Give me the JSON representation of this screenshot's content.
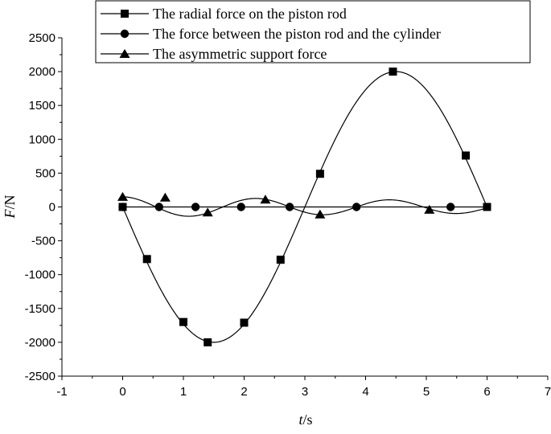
{
  "chart_data": {
    "type": "line",
    "xlabel_var": "t",
    "xlabel_unit": "/s",
    "ylabel_var": "F",
    "ylabel_unit": "/N",
    "xlim": [
      -1,
      7
    ],
    "ylim": [
      -2500,
      2500
    ],
    "xticks": [
      "-1",
      "0",
      "1",
      "2",
      "3",
      "4",
      "5",
      "6",
      "7"
    ],
    "yticks": [
      "-2500",
      "-2000",
      "-1500",
      "-1000",
      "-500",
      "0",
      "500",
      "1000",
      "1500",
      "2000",
      "2500"
    ],
    "grid": false,
    "legend_position": "top",
    "series": [
      {
        "name": "The radial force on the piston rod",
        "marker": "square",
        "curve": "radial",
        "x": [
          0,
          0.4,
          1.0,
          1.4,
          2.0,
          2.6,
          3.25,
          4.45,
          5.65,
          6.0
        ],
        "values": [
          0,
          -770,
          -1700,
          -2000,
          -1710,
          -780,
          490,
          2000,
          760,
          0
        ]
      },
      {
        "name": "The force between the piston rod and the cylinder",
        "marker": "circle",
        "curve": "flat",
        "x": [
          0,
          0.6,
          1.2,
          1.95,
          2.75,
          3.85,
          5.4
        ],
        "values": [
          0,
          0,
          0,
          0,
          0,
          0,
          0
        ]
      },
      {
        "name": "The asymmetric support force",
        "marker": "triangle",
        "curve": "wave",
        "x": [
          0,
          0.7,
          1.4,
          2.35,
          3.25,
          5.05
        ],
        "values": [
          150,
          140,
          -80,
          110,
          -110,
          -40
        ]
      }
    ]
  }
}
